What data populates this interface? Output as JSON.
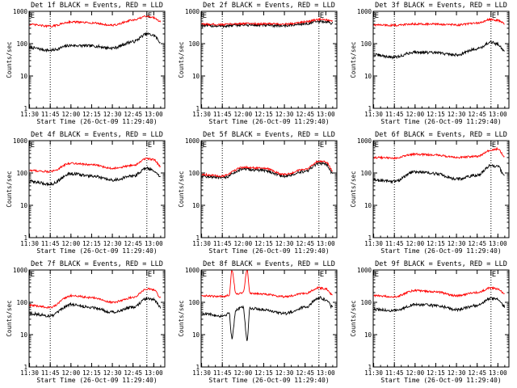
{
  "figure": {
    "background": "#ffffff",
    "event_color": "#000000",
    "lld_color": "#ff0000"
  },
  "chart_data": [
    {
      "type": "line",
      "title": "Det 1f BLACK = Events, RED = LLD",
      "xlabel": "Start Time (26-Oct-09 11:29:40)",
      "ylabel": "Counts/sec",
      "ylog": true,
      "ylim": [
        1,
        1000
      ],
      "yticklabels": [
        "1",
        "10",
        "100",
        "1000"
      ],
      "xlim": [
        "11:29:40",
        "13:08:00"
      ],
      "xticklabels": [
        "11:30",
        "11:45",
        "12:00",
        "12:15",
        "12:30",
        "12:45",
        "13:00"
      ],
      "markers": [
        {
          "label": "E",
          "time": "11:30"
        },
        {
          "label": "E",
          "time": "12:55"
        }
      ],
      "vlines": [
        "11:45",
        "12:55"
      ],
      "series": [
        {
          "color": "#000000",
          "times": [
            "11:30",
            "11:45",
            "12:00",
            "12:15",
            "12:30",
            "12:45",
            "12:55",
            "13:00",
            "13:05"
          ],
          "values": [
            75,
            62,
            88,
            85,
            73,
            115,
            200,
            180,
            110
          ]
        },
        {
          "color": "#ff0000",
          "times": [
            "11:30",
            "11:45",
            "12:00",
            "12:15",
            "12:30",
            "12:45",
            "12:55",
            "13:00",
            "13:05"
          ],
          "values": [
            390,
            345,
            470,
            440,
            370,
            530,
            700,
            640,
            480
          ]
        }
      ]
    },
    {
      "type": "line",
      "title": "Det 2f BLACK = Events, RED = LLD",
      "xlabel": "Start Time (26-Oct-09 11:29:40)",
      "ylabel": "Counts/sec",
      "ylog": true,
      "ylim": [
        1,
        1000
      ],
      "yticklabels": [
        "1",
        "10",
        "100",
        "1000"
      ],
      "xlim": [
        "11:29:40",
        "13:08:00"
      ],
      "xticklabels": [
        "11:30",
        "11:45",
        "12:00",
        "12:15",
        "12:30",
        "12:45",
        "13:00"
      ],
      "markers": [
        {
          "label": "E",
          "time": "11:30"
        },
        {
          "label": "E",
          "time": "12:55"
        }
      ],
      "vlines": [
        "11:45",
        "12:55"
      ],
      "series": [
        {
          "color": "#000000",
          "times": [
            "11:30",
            "11:45",
            "12:00",
            "12:15",
            "12:30",
            "12:45",
            "12:55",
            "13:00",
            "13:05"
          ],
          "values": [
            360,
            350,
            380,
            370,
            360,
            410,
            480,
            470,
            430
          ]
        },
        {
          "color": "#ff0000",
          "times": [
            "11:30",
            "11:45",
            "12:00",
            "12:15",
            "12:30",
            "12:45",
            "12:55",
            "13:00",
            "13:05"
          ],
          "values": [
            400,
            390,
            420,
            410,
            400,
            470,
            560,
            540,
            480
          ]
        }
      ]
    },
    {
      "type": "line",
      "title": "Det 3f BLACK = Events, RED = LLD",
      "xlabel": "Start Time (26-Oct-09 11:29:40)",
      "ylabel": "Counts/sec",
      "ylog": true,
      "ylim": [
        1,
        1000
      ],
      "yticklabels": [
        "1",
        "10",
        "100",
        "1000"
      ],
      "xlim": [
        "11:29:40",
        "13:08:00"
      ],
      "xticklabels": [
        "11:30",
        "11:45",
        "12:00",
        "12:15",
        "12:30",
        "12:45",
        "13:00"
      ],
      "markers": [
        {
          "label": "E",
          "time": "11:30"
        },
        {
          "label": "E",
          "time": "12:55"
        }
      ],
      "vlines": [
        "11:45",
        "12:55"
      ],
      "series": [
        {
          "color": "#000000",
          "times": [
            "11:30",
            "11:45",
            "12:00",
            "12:15",
            "12:30",
            "12:45",
            "12:55",
            "13:00",
            "13:05"
          ],
          "values": [
            45,
            38,
            55,
            52,
            45,
            70,
            110,
            95,
            60
          ]
        },
        {
          "color": "#ff0000",
          "times": [
            "11:30",
            "11:45",
            "12:00",
            "12:15",
            "12:30",
            "12:45",
            "12:55",
            "13:00",
            "13:05"
          ],
          "values": [
            380,
            370,
            410,
            400,
            380,
            430,
            560,
            520,
            420
          ]
        }
      ]
    },
    {
      "type": "line",
      "title": "Det 4f BLACK = Events, RED = LLD",
      "xlabel": "Start Time (26-Oct-09 11:29:40)",
      "ylabel": "Counts/sec",
      "ylog": true,
      "ylim": [
        1,
        1000
      ],
      "yticklabels": [
        "1",
        "10",
        "100",
        "1000"
      ],
      "xlim": [
        "11:29:40",
        "13:08:00"
      ],
      "xticklabels": [
        "11:30",
        "11:45",
        "12:00",
        "12:15",
        "12:30",
        "12:45",
        "13:00"
      ],
      "markers": [
        {
          "label": "E",
          "time": "11:30"
        },
        {
          "label": "E",
          "time": "12:55"
        }
      ],
      "vlines": [
        "11:45",
        "12:55"
      ],
      "series": [
        {
          "color": "#000000",
          "times": [
            "11:30",
            "11:45",
            "12:00",
            "12:15",
            "12:30",
            "12:45",
            "12:55",
            "13:00",
            "13:05"
          ],
          "values": [
            55,
            45,
            95,
            80,
            60,
            80,
            140,
            120,
            75
          ]
        },
        {
          "color": "#ff0000",
          "times": [
            "11:30",
            "11:45",
            "12:00",
            "12:15",
            "12:30",
            "12:45",
            "12:55",
            "13:00",
            "13:05"
          ],
          "values": [
            120,
            110,
            200,
            180,
            140,
            170,
            280,
            260,
            160
          ]
        }
      ]
    },
    {
      "type": "line",
      "title": "Det 5f BLACK = Events, RED = LLD",
      "xlabel": "Start Time (26-Oct-09 11:29:40)",
      "ylabel": "Counts/sec",
      "ylog": true,
      "ylim": [
        1,
        1000
      ],
      "yticklabels": [
        "1",
        "10",
        "100",
        "1000"
      ],
      "xlim": [
        "11:29:40",
        "13:08:00"
      ],
      "xticklabels": [
        "11:30",
        "11:45",
        "12:00",
        "12:15",
        "12:30",
        "12:45",
        "13:00"
      ],
      "markers": [
        {
          "label": "E",
          "time": "11:30"
        },
        {
          "label": "E",
          "time": "12:55"
        }
      ],
      "vlines": [
        "11:45",
        "12:55"
      ],
      "series": [
        {
          "color": "#000000",
          "times": [
            "11:30",
            "11:45",
            "12:00",
            "12:15",
            "12:30",
            "12:45",
            "12:55",
            "13:00",
            "13:05"
          ],
          "values": [
            80,
            70,
            130,
            120,
            80,
            110,
            200,
            190,
            100
          ]
        },
        {
          "color": "#ff0000",
          "times": [
            "11:30",
            "11:45",
            "12:00",
            "12:15",
            "12:30",
            "12:45",
            "12:55",
            "13:00",
            "13:05"
          ],
          "values": [
            90,
            80,
            150,
            140,
            90,
            130,
            230,
            220,
            120
          ]
        }
      ]
    },
    {
      "type": "line",
      "title": "Det 6f BLACK = Events, RED = LLD",
      "xlabel": "Start Time (26-Oct-09 11:29:40)",
      "ylabel": "Counts/sec",
      "ylog": true,
      "ylim": [
        1,
        1000
      ],
      "yticklabels": [
        "1",
        "10",
        "100",
        "1000"
      ],
      "xlim": [
        "11:29:40",
        "13:08:00"
      ],
      "xticklabels": [
        "11:30",
        "11:45",
        "12:00",
        "12:15",
        "12:30",
        "12:45",
        "13:00"
      ],
      "markers": [
        {
          "label": "E",
          "time": "11:30"
        },
        {
          "label": "E",
          "time": "12:55"
        }
      ],
      "vlines": [
        "11:45",
        "12:55"
      ],
      "series": [
        {
          "color": "#000000",
          "times": [
            "11:30",
            "11:45",
            "12:00",
            "12:15",
            "12:30",
            "12:45",
            "12:55",
            "13:00",
            "13:05"
          ],
          "values": [
            60,
            55,
            110,
            95,
            65,
            85,
            170,
            160,
            80
          ]
        },
        {
          "color": "#ff0000",
          "times": [
            "11:30",
            "11:45",
            "12:00",
            "12:15",
            "12:30",
            "12:45",
            "12:55",
            "13:00",
            "13:05"
          ],
          "values": [
            300,
            290,
            380,
            360,
            300,
            330,
            500,
            560,
            320
          ]
        }
      ]
    },
    {
      "type": "line",
      "title": "Det 7f BLACK = Events, RED = LLD",
      "xlabel": "Start Time (26-Oct-09 11:29:40)",
      "ylabel": "Counts/sec",
      "ylog": true,
      "ylim": [
        1,
        1000
      ],
      "yticklabels": [
        "1",
        "10",
        "100",
        "1000"
      ],
      "xlim": [
        "11:29:40",
        "13:08:00"
      ],
      "xticklabels": [
        "11:30",
        "11:45",
        "12:00",
        "12:15",
        "12:30",
        "12:45",
        "13:00"
      ],
      "markers": [
        {
          "label": "E",
          "time": "11:30"
        },
        {
          "label": "E",
          "time": "12:55"
        }
      ],
      "vlines": [
        "11:45",
        "12:55"
      ],
      "series": [
        {
          "color": "#000000",
          "times": [
            "11:30",
            "11:45",
            "12:00",
            "12:15",
            "12:30",
            "12:45",
            "12:55",
            "13:00",
            "13:05"
          ],
          "values": [
            45,
            38,
            85,
            70,
            50,
            70,
            130,
            120,
            70
          ]
        },
        {
          "color": "#ff0000",
          "times": [
            "11:30",
            "11:45",
            "12:00",
            "12:15",
            "12:30",
            "12:45",
            "12:55",
            "13:00",
            "13:05"
          ],
          "values": [
            80,
            70,
            160,
            140,
            100,
            140,
            260,
            250,
            140
          ]
        }
      ]
    },
    {
      "type": "line",
      "title": "Det 8f BLACK = Events, RED = LLD",
      "xlabel": "Start Time (26-Oct-09 11:29:40)",
      "ylabel": "Counts/sec",
      "ylog": true,
      "ylim": [
        1,
        1000
      ],
      "yticklabels": [
        "1",
        "10",
        "100",
        "1000"
      ],
      "xlim": [
        "11:29:40",
        "13:08:00"
      ],
      "xticklabels": [
        "11:30",
        "11:45",
        "12:00",
        "12:15",
        "12:30",
        "12:45",
        "13:00"
      ],
      "markers": [
        {
          "label": "E",
          "time": "11:30"
        },
        {
          "label": "E",
          "time": "12:55"
        }
      ],
      "vlines": [
        "11:45",
        "12:55"
      ],
      "series": [
        {
          "color": "#000000",
          "times": [
            "11:30",
            "11:45",
            "11:50",
            "11:52",
            "11:55",
            "12:00",
            "12:03",
            "12:05",
            "12:15",
            "12:30",
            "12:45",
            "12:55",
            "13:00",
            "13:05"
          ],
          "values": [
            45,
            38,
            45,
            8,
            60,
            70,
            7,
            65,
            60,
            45,
            70,
            140,
            120,
            70
          ]
        },
        {
          "color": "#ff0000",
          "times": [
            "11:30",
            "11:45",
            "11:50",
            "11:52",
            "11:55",
            "12:00",
            "12:03",
            "12:05",
            "12:15",
            "12:30",
            "12:45",
            "12:55",
            "13:00",
            "13:05"
          ],
          "values": [
            160,
            150,
            170,
            1000,
            180,
            200,
            1000,
            190,
            180,
            150,
            190,
            280,
            260,
            170
          ]
        }
      ]
    },
    {
      "type": "line",
      "title": "Det 9f BLACK = Events, RED = LLD",
      "xlabel": "Start Time (26-Oct-09 11:29:40)",
      "ylabel": "Counts/sec",
      "ylog": true,
      "ylim": [
        1,
        1000
      ],
      "yticklabels": [
        "1",
        "10",
        "100",
        "1000"
      ],
      "xlim": [
        "11:29:40",
        "13:08:00"
      ],
      "xticklabels": [
        "11:30",
        "11:45",
        "12:00",
        "12:15",
        "12:30",
        "12:45",
        "13:00"
      ],
      "markers": [
        {
          "label": "E",
          "time": "11:30"
        },
        {
          "label": "E",
          "time": "12:55"
        }
      ],
      "vlines": [
        "11:45",
        "12:55"
      ],
      "series": [
        {
          "color": "#000000",
          "times": [
            "11:30",
            "11:45",
            "12:00",
            "12:15",
            "12:30",
            "12:45",
            "12:55",
            "13:00",
            "13:05"
          ],
          "values": [
            60,
            55,
            85,
            80,
            60,
            80,
            130,
            120,
            75
          ]
        },
        {
          "color": "#ff0000",
          "times": [
            "11:30",
            "11:45",
            "12:00",
            "12:15",
            "12:30",
            "12:45",
            "12:55",
            "13:00",
            "13:05"
          ],
          "values": [
            160,
            150,
            230,
            210,
            160,
            200,
            280,
            260,
            180
          ]
        }
      ]
    }
  ]
}
